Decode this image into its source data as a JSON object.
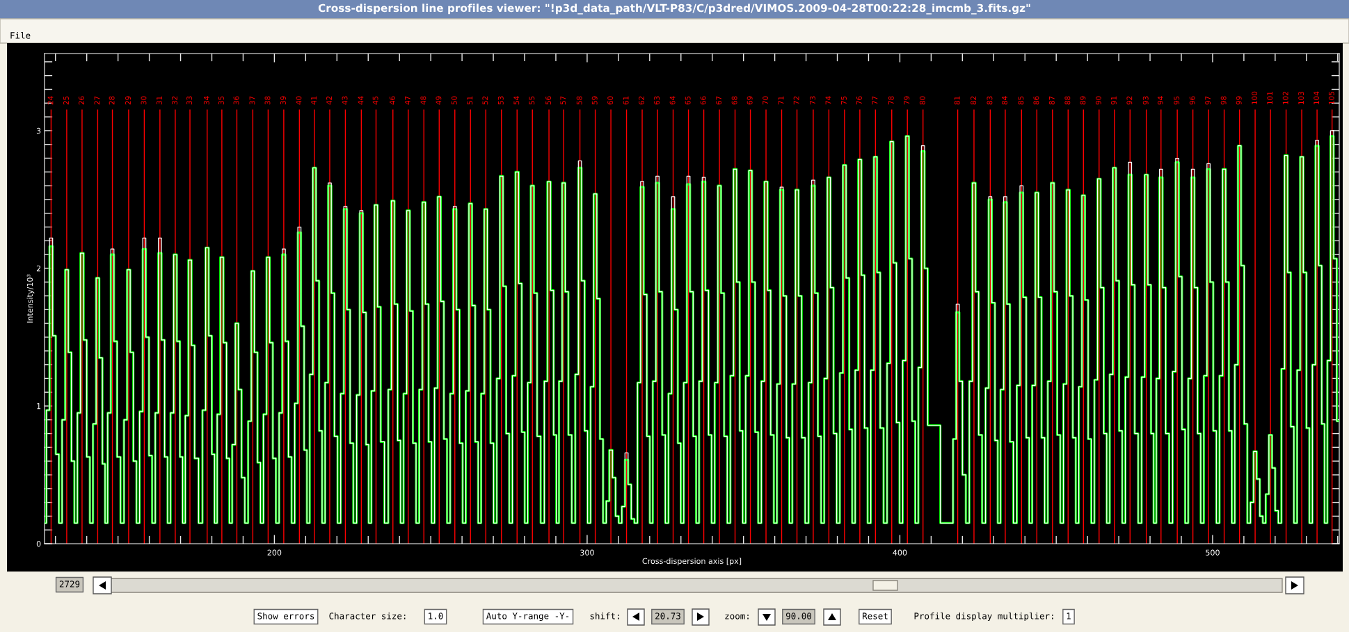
{
  "chart_data": {
    "type": "step",
    "title": "Cross-dispersion line profiles viewer: \"!p3d_data_path/VLT-P83/C/p3dred/VIMOS.2009-04-28T00:22:28_imcmb_3.fits.gz\"",
    "xlabel": "Cross-dispersion axis [px]",
    "ylabel": "Intensity/10³",
    "xlim": [
      126.5,
      540.5
    ],
    "ylim": [
      0,
      3.56
    ],
    "xticks": [
      {
        "value": 130,
        "label": null
      },
      {
        "value": 140,
        "label": null
      },
      {
        "value": 150,
        "label": null
      },
      {
        "value": 160,
        "label": null
      },
      {
        "value": 170,
        "label": null
      },
      {
        "value": 180,
        "label": null
      },
      {
        "value": 190,
        "label": null
      },
      200,
      {
        "value": 210,
        "label": null
      },
      {
        "value": 220,
        "label": null
      },
      {
        "value": 230,
        "label": null
      },
      {
        "value": 240,
        "label": null
      },
      {
        "value": 250,
        "label": null
      },
      {
        "value": 260,
        "label": null
      },
      {
        "value": 270,
        "label": null
      },
      {
        "value": 280,
        "label": null
      },
      {
        "value": 290,
        "label": null
      },
      300,
      {
        "value": 310,
        "label": null
      },
      {
        "value": 320,
        "label": null
      },
      {
        "value": 330,
        "label": null
      },
      {
        "value": 340,
        "label": null
      },
      {
        "value": 350,
        "label": null
      },
      {
        "value": 360,
        "label": null
      },
      {
        "value": 370,
        "label": null
      },
      {
        "value": 380,
        "label": null
      },
      {
        "value": 390,
        "label": null
      },
      400,
      {
        "value": 410,
        "label": null
      },
      {
        "value": 420,
        "label": null
      },
      {
        "value": 430,
        "label": null
      },
      {
        "value": 440,
        "label": null
      },
      {
        "value": 450,
        "label": null
      },
      {
        "value": 460,
        "label": null
      },
      {
        "value": 470,
        "label": null
      },
      {
        "value": 480,
        "label": null
      },
      {
        "value": 490,
        "label": null
      },
      500,
      {
        "value": 510,
        "label": null
      },
      {
        "value": 520,
        "label": null
      },
      {
        "value": 530,
        "label": null
      },
      {
        "value": 540,
        "label": null
      }
    ],
    "yticks": [
      0,
      {
        "value": 0.1,
        "label": null
      },
      {
        "value": 0.2,
        "label": null
      },
      {
        "value": 0.3,
        "label": null
      },
      {
        "value": 0.4,
        "label": null
      },
      {
        "value": 0.5,
        "label": null
      },
      {
        "value": 0.6,
        "label": null
      },
      {
        "value": 0.7,
        "label": null
      },
      {
        "value": 0.8,
        "label": null
      },
      {
        "value": 0.9,
        "label": null
      },
      1,
      {
        "value": 1.1,
        "label": null
      },
      {
        "value": 1.2,
        "label": null
      },
      {
        "value": 1.3,
        "label": null
      },
      {
        "value": 1.4,
        "label": null
      },
      {
        "value": 1.5,
        "label": null
      },
      {
        "value": 1.6,
        "label": null
      },
      {
        "value": 1.7,
        "label": null
      },
      {
        "value": 1.8,
        "label": null
      },
      {
        "value": 1.9,
        "label": null
      },
      2,
      {
        "value": 2.1,
        "label": null
      },
      {
        "value": 2.2,
        "label": null
      },
      {
        "value": 2.3,
        "label": null
      },
      {
        "value": 2.4,
        "label": null
      },
      {
        "value": 2.5,
        "label": null
      },
      {
        "value": 2.6,
        "label": null
      },
      {
        "value": 2.7,
        "label": null
      },
      {
        "value": 2.8,
        "label": null
      },
      {
        "value": 2.9,
        "label": null
      },
      3,
      {
        "value": 3.1,
        "label": null
      },
      {
        "value": 3.2,
        "label": null
      },
      {
        "value": 3.3,
        "label": null
      },
      {
        "value": 3.4,
        "label": null
      },
      {
        "value": 3.5,
        "label": null
      }
    ],
    "x": [
      126.6,
      127.6,
      128.6,
      129.6,
      130.6,
      131.6,
      132.6,
      133.6,
      134.6,
      135.6,
      136.5,
      137.5,
      138.5,
      139.5,
      140.5,
      141.5,
      142.5,
      143.5,
      144.5,
      145.5,
      146.2,
      147.2,
      148.2,
      149.2,
      150.2,
      151.4,
      152.4,
      153.4,
      154.4,
      155.4,
      156.4,
      157.4,
      158.4,
      159.4,
      160.4,
      161.4,
      162.4,
      163.4,
      164.4,
      165.4,
      166.3,
      167.3,
      168.3,
      169.3,
      170.3,
      171.0,
      172.0,
      173.0,
      174.0,
      175.0,
      176.5,
      177.5,
      178.5,
      179.5,
      180.5,
      181.2,
      182.2,
      183.2,
      184.2,
      185.2,
      186.0,
      187.0,
      188.0,
      189.0,
      190.0,
      191.1,
      192.1,
      193.1,
      194.1,
      195.1,
      196.0,
      197.0,
      198.0,
      199.0,
      200.0,
      201.0,
      202.0,
      203.0,
      204.0,
      205.0,
      206.0,
      207.0,
      208.0,
      209.0,
      210.0,
      210.8,
      211.8,
      212.8,
      213.8,
      214.8,
      215.7,
      216.7,
      217.7,
      218.7,
      219.7,
      220.7,
      221.7,
      222.7,
      223.7,
      224.7,
      225.8,
      226.8,
      227.8,
      228.8,
      229.8,
      230.5,
      231.5,
      232.5,
      233.5,
      234.5,
      235.9,
      236.9,
      237.9,
      238.9,
      239.9,
      240.8,
      241.8,
      242.8,
      243.8,
      244.8,
      245.8,
      246.8,
      247.8,
      248.8,
      249.8,
      250.7,
      251.7,
      252.7,
      253.7,
      254.7,
      255.7,
      256.7,
      257.7,
      258.7,
      259.7,
      260.7,
      261.7,
      262.7,
      263.7,
      264.7,
      265.6,
      266.6,
      267.6,
      268.6,
      269.6,
      270.6,
      271.6,
      272.6,
      273.6,
      274.6,
      275.6,
      276.6,
      277.6,
      278.6,
      279.6,
      280.5,
      281.5,
      282.5,
      283.5,
      284.5,
      285.8,
      286.8,
      287.8,
      288.8,
      289.8,
      290.5,
      291.5,
      292.5,
      293.5,
      294.5,
      295.7,
      296.7,
      297.7,
      298.7,
      299.7,
      300.6,
      301.6,
      302.6,
      303.6,
      304.6,
      305.6,
      306.6,
      307.6,
      308.6,
      309.6,
      310.6,
      311.6,
      312.6,
      313.6,
      314.6,
      315.6,
      316.6,
      317.6,
      318.6,
      319.6,
      320.5,
      321.5,
      322.5,
      323.5,
      324.5,
      325.5,
      326.5,
      327.5,
      328.5,
      329.5,
      330.4,
      331.4,
      332.4,
      333.4,
      334.4,
      335.3,
      336.3,
      337.3,
      338.3,
      339.3,
      340.3,
      341.3,
      342.3,
      343.3,
      344.3,
      345.3,
      346.3,
      347.3,
      348.3,
      349.3,
      350.2,
      351.2,
      352.2,
      353.2,
      354.2,
      355.2,
      356.2,
      357.2,
      358.2,
      359.2,
      360.2,
      361.2,
      362.2,
      363.2,
      364.2,
      365.1,
      366.1,
      367.1,
      368.1,
      369.1,
      370.3,
      371.3,
      372.3,
      373.3,
      374.3,
      375.3,
      376.3,
      377.3,
      378.3,
      379.3,
      380.3,
      381.3,
      382.3,
      383.3,
      384.3,
      385.2,
      386.2,
      387.2,
      388.2,
      389.2,
      390.2,
      391.2,
      392.2,
      393.2,
      394.2,
      395.4,
      396.4,
      397.4,
      398.4,
      399.4,
      400.4,
      401.4,
      402.4,
      403.4,
      404.4,
      405.4,
      406.4,
      407.4,
      408.4,
      409.4,
      416.5,
      417.5,
      418.5,
      419.5,
      420.5,
      421.7,
      422.7,
      423.7,
      424.7,
      425.7,
      426.9,
      427.9,
      428.9,
      429.9,
      430.9,
      431.7,
      432.7,
      433.7,
      434.7,
      435.7,
      436.9,
      437.9,
      438.9,
      439.9,
      440.9,
      441.8,
      442.8,
      443.8,
      444.8,
      445.8,
      446.8,
      447.8,
      448.8,
      449.8,
      450.8,
      451.8,
      452.8,
      453.8,
      454.8,
      455.8,
      456.7,
      457.7,
      458.7,
      459.7,
      460.7,
      461.7,
      462.7,
      463.7,
      464.7,
      465.7,
      466.6,
      467.6,
      468.6,
      469.6,
      470.6,
      471.6,
      472.6,
      473.6,
      474.6,
      475.6,
      476.8,
      477.8,
      478.8,
      479.8,
      480.8,
      481.5,
      482.5,
      483.5,
      484.5,
      485.5,
      486.7,
      487.7,
      488.7,
      489.7,
      490.7,
      491.7,
      492.7,
      493.7,
      494.7,
      495.7,
      496.7,
      497.7,
      498.7,
      499.7,
      500.7,
      501.7,
      502.7,
      503.7,
      504.7,
      505.7,
      506.6,
      507.6,
      508.6,
      509.6,
      510.6,
      511.6,
      512.6,
      513.6,
      514.6,
      515.6,
      516.5,
      517.5,
      518.5,
      519.5,
      520.5,
      521.5,
      522.5,
      523.5,
      524.5,
      525.5,
      526.5,
      527.5,
      528.5,
      529.5,
      530.5,
      531.4,
      532.4,
      533.4,
      534.4,
      535.4,
      536.2,
      537.2,
      538.2,
      539.2,
      540.2
    ],
    "series": [
      {
        "color": "#ffffff",
        "values": [
          0.15,
          0.97,
          2.22,
          1.51,
          0.65,
          0.15,
          0.9,
          1.99,
          1.39,
          0.6,
          0.15,
          0.95,
          2.11,
          1.48,
          0.63,
          0.15,
          0.87,
          1.93,
          1.35,
          0.58,
          0.15,
          0.95,
          2.14,
          1.47,
          0.63,
          0.15,
          0.9,
          1.99,
          1.39,
          0.6,
          0.15,
          0.96,
          2.22,
          1.5,
          0.64,
          0.15,
          0.95,
          2.22,
          1.48,
          0.63,
          0.15,
          0.95,
          2.1,
          1.47,
          0.63,
          0.15,
          0.93,
          2.06,
          1.44,
          0.62,
          0.15,
          0.97,
          2.15,
          1.51,
          0.65,
          0.15,
          0.94,
          2.08,
          1.46,
          0.62,
          0.15,
          0.72,
          1.6,
          1.12,
          0.48,
          0.15,
          0.89,
          1.98,
          1.39,
          0.59,
          0.15,
          0.94,
          2.08,
          1.46,
          0.62,
          0.15,
          0.95,
          2.14,
          1.47,
          0.63,
          0.15,
          1.02,
          2.3,
          1.58,
          0.68,
          0.15,
          1.23,
          2.73,
          1.91,
          0.82,
          0.15,
          1.17,
          2.62,
          1.82,
          0.78,
          0.15,
          1.09,
          2.45,
          1.7,
          0.73,
          0.15,
          1.08,
          2.42,
          1.68,
          0.72,
          0.15,
          1.11,
          2.46,
          1.72,
          0.74,
          0.15,
          1.12,
          2.49,
          1.74,
          0.75,
          0.15,
          1.09,
          2.42,
          1.69,
          0.73,
          0.15,
          1.12,
          2.48,
          1.74,
          0.74,
          0.15,
          1.13,
          2.52,
          1.76,
          0.76,
          0.15,
          1.09,
          2.45,
          1.7,
          0.73,
          0.15,
          1.11,
          2.47,
          1.73,
          0.74,
          0.15,
          1.09,
          2.43,
          1.7,
          0.73,
          0.15,
          1.2,
          2.67,
          1.87,
          0.8,
          0.15,
          1.22,
          2.7,
          1.89,
          0.81,
          0.15,
          1.17,
          2.6,
          1.82,
          0.78,
          0.15,
          1.18,
          2.63,
          1.84,
          0.79,
          0.15,
          1.18,
          2.62,
          1.83,
          0.79,
          0.15,
          1.23,
          2.78,
          1.91,
          0.82,
          0.15,
          1.14,
          2.54,
          1.78,
          0.76,
          0.15,
          0.31,
          0.68,
          0.48,
          0.2,
          0.15,
          0.27,
          0.66,
          0.43,
          0.18,
          0.15,
          1.17,
          2.63,
          1.81,
          0.78,
          0.15,
          1.18,
          2.67,
          1.83,
          0.79,
          0.15,
          1.09,
          2.52,
          1.7,
          0.73,
          0.15,
          1.17,
          2.67,
          1.83,
          0.78,
          0.15,
          1.18,
          2.66,
          1.84,
          0.79,
          0.15,
          1.17,
          2.6,
          1.82,
          0.78,
          0.15,
          1.22,
          2.72,
          1.9,
          0.82,
          0.15,
          1.22,
          2.71,
          1.9,
          0.81,
          0.15,
          1.18,
          2.63,
          1.84,
          0.79,
          0.15,
          1.16,
          2.59,
          1.8,
          0.77,
          0.15,
          1.16,
          2.57,
          1.8,
          0.77,
          0.15,
          1.17,
          2.64,
          1.82,
          0.78,
          0.15,
          1.2,
          2.66,
          1.86,
          0.8,
          0.15,
          1.24,
          2.75,
          1.93,
          0.83,
          0.15,
          1.26,
          2.79,
          1.95,
          0.84,
          0.15,
          1.26,
          2.81,
          1.97,
          0.84,
          0.15,
          1.31,
          2.92,
          2.04,
          0.88,
          0.15,
          1.33,
          2.96,
          2.07,
          0.89,
          0.15,
          1.28,
          2.89,
          2.0,
          0.86,
          0.15,
          0.76,
          1.74,
          1.18,
          0.5,
          0.15,
          1.18,
          2.62,
          1.83,
          0.79,
          0.15,
          1.13,
          2.52,
          1.75,
          0.75,
          0.15,
          1.12,
          2.52,
          1.74,
          0.74,
          0.15,
          1.15,
          2.6,
          1.79,
          0.77,
          0.15,
          1.15,
          2.55,
          1.79,
          0.77,
          0.15,
          1.18,
          2.62,
          1.83,
          0.79,
          0.15,
          1.16,
          2.57,
          1.8,
          0.77,
          0.15,
          1.14,
          2.53,
          1.77,
          0.76,
          0.15,
          1.19,
          2.65,
          1.86,
          0.8,
          0.15,
          1.23,
          2.73,
          1.91,
          0.82,
          0.15,
          1.21,
          2.77,
          1.88,
          0.8,
          0.15,
          1.21,
          2.68,
          1.88,
          0.8,
          0.15,
          1.2,
          2.72,
          1.86,
          0.8,
          0.15,
          1.25,
          2.8,
          1.94,
          0.83,
          0.15,
          1.2,
          2.72,
          1.86,
          0.8,
          0.15,
          1.22,
          2.76,
          1.9,
          0.82,
          0.15,
          1.22,
          2.72,
          1.9,
          0.82,
          0.15,
          1.3,
          2.89,
          2.02,
          0.87,
          0.15,
          0.3,
          0.67,
          0.47,
          0.2,
          0.15,
          0.36,
          0.79,
          0.55,
          0.24,
          0.15,
          1.27,
          2.82,
          1.97,
          0.85,
          0.15,
          1.26,
          2.81,
          1.97,
          0.84,
          0.15,
          1.3,
          2.93,
          2.02,
          0.87,
          0.15,
          1.33,
          3.0,
          2.07,
          0.89
        ]
      },
      {
        "color": "#00ff00",
        "values": [
          0.15,
          0.97,
          2.16,
          1.51,
          0.65,
          0.15,
          0.9,
          1.99,
          1.39,
          0.6,
          0.15,
          0.95,
          2.11,
          1.48,
          0.63,
          0.15,
          0.87,
          1.93,
          1.35,
          0.58,
          0.15,
          0.95,
          2.1,
          1.47,
          0.63,
          0.15,
          0.9,
          1.99,
          1.39,
          0.6,
          0.15,
          0.96,
          2.14,
          1.5,
          0.64,
          0.15,
          0.95,
          2.11,
          1.48,
          0.63,
          0.15,
          0.95,
          2.1,
          1.47,
          0.63,
          0.15,
          0.93,
          2.06,
          1.44,
          0.62,
          0.15,
          0.97,
          2.15,
          1.51,
          0.65,
          0.15,
          0.94,
          2.08,
          1.46,
          0.62,
          0.15,
          0.72,
          1.6,
          1.12,
          0.48,
          0.15,
          0.89,
          1.98,
          1.39,
          0.59,
          0.15,
          0.94,
          2.08,
          1.46,
          0.62,
          0.15,
          0.95,
          2.1,
          1.47,
          0.63,
          0.15,
          1.02,
          2.26,
          1.58,
          0.68,
          0.15,
          1.23,
          2.73,
          1.91,
          0.82,
          0.15,
          1.17,
          2.6,
          1.82,
          0.78,
          0.15,
          1.09,
          2.43,
          1.7,
          0.73,
          0.15,
          1.08,
          2.4,
          1.68,
          0.72,
          0.15,
          1.11,
          2.46,
          1.72,
          0.74,
          0.15,
          1.12,
          2.49,
          1.74,
          0.75,
          0.15,
          1.09,
          2.42,
          1.69,
          0.73,
          0.15,
          1.12,
          2.48,
          1.74,
          0.74,
          0.15,
          1.13,
          2.52,
          1.76,
          0.76,
          0.15,
          1.09,
          2.43,
          1.7,
          0.73,
          0.15,
          1.11,
          2.47,
          1.73,
          0.74,
          0.15,
          1.09,
          2.43,
          1.7,
          0.73,
          0.15,
          1.2,
          2.67,
          1.87,
          0.8,
          0.15,
          1.22,
          2.7,
          1.89,
          0.81,
          0.15,
          1.17,
          2.6,
          1.82,
          0.78,
          0.15,
          1.18,
          2.63,
          1.84,
          0.79,
          0.15,
          1.18,
          2.62,
          1.83,
          0.79,
          0.15,
          1.23,
          2.73,
          1.91,
          0.82,
          0.15,
          1.14,
          2.54,
          1.78,
          0.76,
          0.15,
          0.31,
          0.68,
          0.48,
          0.2,
          0.15,
          0.27,
          0.61,
          0.43,
          0.18,
          0.15,
          1.17,
          2.59,
          1.81,
          0.78,
          0.15,
          1.18,
          2.62,
          1.83,
          0.79,
          0.15,
          1.09,
          2.43,
          1.7,
          0.73,
          0.15,
          1.17,
          2.61,
          1.83,
          0.78,
          0.15,
          1.18,
          2.63,
          1.84,
          0.79,
          0.15,
          1.17,
          2.6,
          1.82,
          0.78,
          0.15,
          1.22,
          2.72,
          1.9,
          0.82,
          0.15,
          1.22,
          2.71,
          1.9,
          0.81,
          0.15,
          1.18,
          2.63,
          1.84,
          0.79,
          0.15,
          1.16,
          2.57,
          1.8,
          0.77,
          0.15,
          1.16,
          2.57,
          1.8,
          0.77,
          0.15,
          1.17,
          2.6,
          1.82,
          0.78,
          0.15,
          1.2,
          2.66,
          1.86,
          0.8,
          0.15,
          1.24,
          2.75,
          1.93,
          0.83,
          0.15,
          1.26,
          2.79,
          1.95,
          0.84,
          0.15,
          1.26,
          2.81,
          1.97,
          0.84,
          0.15,
          1.31,
          2.92,
          2.04,
          0.88,
          0.15,
          1.33,
          2.96,
          2.07,
          0.89,
          0.15,
          1.28,
          2.85,
          2.0,
          0.86,
          0.15,
          0.76,
          1.68,
          1.18,
          0.5,
          0.15,
          1.18,
          2.62,
          1.83,
          0.79,
          0.15,
          1.13,
          2.5,
          1.75,
          0.75,
          0.15,
          1.12,
          2.48,
          1.74,
          0.74,
          0.15,
          1.15,
          2.55,
          1.79,
          0.77,
          0.15,
          1.15,
          2.55,
          1.79,
          0.77,
          0.15,
          1.18,
          2.62,
          1.83,
          0.79,
          0.15,
          1.16,
          2.57,
          1.8,
          0.77,
          0.15,
          1.14,
          2.53,
          1.77,
          0.76,
          0.15,
          1.19,
          2.65,
          1.86,
          0.8,
          0.15,
          1.23,
          2.73,
          1.91,
          0.82,
          0.15,
          1.21,
          2.68,
          1.88,
          0.8,
          0.15,
          1.21,
          2.68,
          1.88,
          0.8,
          0.15,
          1.2,
          2.66,
          1.86,
          0.8,
          0.15,
          1.25,
          2.77,
          1.94,
          0.83,
          0.15,
          1.2,
          2.66,
          1.86,
          0.8,
          0.15,
          1.22,
          2.72,
          1.9,
          0.82,
          0.15,
          1.22,
          2.72,
          1.9,
          0.82,
          0.15,
          1.3,
          2.89,
          2.02,
          0.87,
          0.15,
          0.3,
          0.67,
          0.47,
          0.2,
          0.15,
          0.36,
          0.79,
          0.55,
          0.24,
          0.15,
          1.27,
          2.82,
          1.97,
          0.85,
          0.15,
          1.26,
          2.81,
          1.97,
          0.84,
          0.15,
          1.3,
          2.89,
          2.02,
          0.87,
          0.15,
          1.33,
          2.96,
          2.07,
          0.89
        ]
      }
    ],
    "ref_lines": [
      {
        "axis": "x",
        "value": 128.6,
        "color": "#ff0000"
      },
      {
        "axis": "x",
        "value": 133.6,
        "color": "#ff0000"
      },
      {
        "axis": "x",
        "value": 138.5,
        "color": "#ff0000"
      },
      {
        "axis": "x",
        "value": 143.5,
        "color": "#ff0000"
      },
      {
        "axis": "x",
        "value": 148.2,
        "color": "#ff0000"
      },
      {
        "axis": "x",
        "value": 153.4,
        "color": "#ff0000"
      },
      {
        "axis": "x",
        "value": 158.4,
        "color": "#ff0000"
      },
      {
        "axis": "x",
        "value": 163.4,
        "color": "#ff0000"
      },
      {
        "axis": "x",
        "value": 168.3,
        "color": "#ff0000"
      },
      {
        "axis": "x",
        "value": 173.0,
        "color": "#ff0000"
      },
      {
        "axis": "x",
        "value": 178.5,
        "color": "#ff0000"
      },
      {
        "axis": "x",
        "value": 183.2,
        "color": "#ff0000"
      },
      {
        "axis": "x",
        "value": 188.0,
        "color": "#ff0000"
      },
      {
        "axis": "x",
        "value": 193.1,
        "color": "#ff0000"
      },
      {
        "axis": "x",
        "value": 198.0,
        "color": "#ff0000"
      },
      {
        "axis": "x",
        "value": 203.0,
        "color": "#ff0000"
      },
      {
        "axis": "x",
        "value": 208.0,
        "color": "#ff0000"
      },
      {
        "axis": "x",
        "value": 212.8,
        "color": "#ff0000"
      },
      {
        "axis": "x",
        "value": 217.7,
        "color": "#ff0000"
      },
      {
        "axis": "x",
        "value": 222.7,
        "color": "#ff0000"
      },
      {
        "axis": "x",
        "value": 227.8,
        "color": "#ff0000"
      },
      {
        "axis": "x",
        "value": 232.5,
        "color": "#ff0000"
      },
      {
        "axis": "x",
        "value": 237.9,
        "color": "#ff0000"
      },
      {
        "axis": "x",
        "value": 242.8,
        "color": "#ff0000"
      },
      {
        "axis": "x",
        "value": 247.8,
        "color": "#ff0000"
      },
      {
        "axis": "x",
        "value": 252.7,
        "color": "#ff0000"
      },
      {
        "axis": "x",
        "value": 257.7,
        "color": "#ff0000"
      },
      {
        "axis": "x",
        "value": 262.7,
        "color": "#ff0000"
      },
      {
        "axis": "x",
        "value": 267.6,
        "color": "#ff0000"
      },
      {
        "axis": "x",
        "value": 272.6,
        "color": "#ff0000"
      },
      {
        "axis": "x",
        "value": 277.6,
        "color": "#ff0000"
      },
      {
        "axis": "x",
        "value": 282.5,
        "color": "#ff0000"
      },
      {
        "axis": "x",
        "value": 287.8,
        "color": "#ff0000"
      },
      {
        "axis": "x",
        "value": 292.5,
        "color": "#ff0000"
      },
      {
        "axis": "x",
        "value": 297.7,
        "color": "#ff0000"
      },
      {
        "axis": "x",
        "value": 302.6,
        "color": "#ff0000"
      },
      {
        "axis": "x",
        "value": 307.6,
        "color": "#ff0000"
      },
      {
        "axis": "x",
        "value": 312.6,
        "color": "#ff0000"
      },
      {
        "axis": "x",
        "value": 317.6,
        "color": "#ff0000"
      },
      {
        "axis": "x",
        "value": 322.5,
        "color": "#ff0000"
      },
      {
        "axis": "x",
        "value": 327.5,
        "color": "#ff0000"
      },
      {
        "axis": "x",
        "value": 332.4,
        "color": "#ff0000"
      },
      {
        "axis": "x",
        "value": 337.3,
        "color": "#ff0000"
      },
      {
        "axis": "x",
        "value": 342.3,
        "color": "#ff0000"
      },
      {
        "axis": "x",
        "value": 347.3,
        "color": "#ff0000"
      },
      {
        "axis": "x",
        "value": 352.2,
        "color": "#ff0000"
      },
      {
        "axis": "x",
        "value": 357.2,
        "color": "#ff0000"
      },
      {
        "axis": "x",
        "value": 362.2,
        "color": "#ff0000"
      },
      {
        "axis": "x",
        "value": 367.1,
        "color": "#ff0000"
      },
      {
        "axis": "x",
        "value": 372.3,
        "color": "#ff0000"
      },
      {
        "axis": "x",
        "value": 377.3,
        "color": "#ff0000"
      },
      {
        "axis": "x",
        "value": 382.3,
        "color": "#ff0000"
      },
      {
        "axis": "x",
        "value": 387.2,
        "color": "#ff0000"
      },
      {
        "axis": "x",
        "value": 392.2,
        "color": "#ff0000"
      },
      {
        "axis": "x",
        "value": 397.4,
        "color": "#ff0000"
      },
      {
        "axis": "x",
        "value": 402.4,
        "color": "#ff0000"
      },
      {
        "axis": "x",
        "value": 407.4,
        "color": "#ff0000"
      },
      {
        "axis": "x",
        "value": 418.5,
        "color": "#ff0000"
      },
      {
        "axis": "x",
        "value": 423.7,
        "color": "#ff0000"
      },
      {
        "axis": "x",
        "value": 428.9,
        "color": "#ff0000"
      },
      {
        "axis": "x",
        "value": 433.7,
        "color": "#ff0000"
      },
      {
        "axis": "x",
        "value": 438.9,
        "color": "#ff0000"
      },
      {
        "axis": "x",
        "value": 443.8,
        "color": "#ff0000"
      },
      {
        "axis": "x",
        "value": 448.8,
        "color": "#ff0000"
      },
      {
        "axis": "x",
        "value": 453.8,
        "color": "#ff0000"
      },
      {
        "axis": "x",
        "value": 458.7,
        "color": "#ff0000"
      },
      {
        "axis": "x",
        "value": 463.7,
        "color": "#ff0000"
      },
      {
        "axis": "x",
        "value": 468.6,
        "color": "#ff0000"
      },
      {
        "axis": "x",
        "value": 473.6,
        "color": "#ff0000"
      },
      {
        "axis": "x",
        "value": 478.8,
        "color": "#ff0000"
      },
      {
        "axis": "x",
        "value": 483.5,
        "color": "#ff0000"
      },
      {
        "axis": "x",
        "value": 488.7,
        "color": "#ff0000"
      },
      {
        "axis": "x",
        "value": 493.7,
        "color": "#ff0000"
      },
      {
        "axis": "x",
        "value": 498.7,
        "color": "#ff0000"
      },
      {
        "axis": "x",
        "value": 503.7,
        "color": "#ff0000"
      },
      {
        "axis": "x",
        "value": 508.6,
        "color": "#ff0000"
      },
      {
        "axis": "x",
        "value": 513.6,
        "color": "#ff0000"
      },
      {
        "axis": "x",
        "value": 518.5,
        "color": "#ff0000"
      },
      {
        "axis": "x",
        "value": 523.5,
        "color": "#ff0000"
      },
      {
        "axis": "x",
        "value": 528.5,
        "color": "#ff0000"
      },
      {
        "axis": "x",
        "value": 533.4,
        "color": "#ff0000"
      },
      {
        "axis": "x",
        "value": 538.2,
        "color": "#ff0000"
      }
    ],
    "annotations": [
      "24",
      "25",
      "26",
      "27",
      "28",
      "29",
      "30",
      "31",
      "32",
      "33",
      "34",
      "35",
      "36",
      "37",
      "38",
      "39",
      "40",
      "41",
      "42",
      "43",
      "44",
      "45",
      "46",
      "47",
      "48",
      "49",
      "50",
      "51",
      "52",
      "53",
      "54",
      "55",
      "56",
      "57",
      "58",
      "59",
      "60",
      "61",
      "62",
      "63",
      "64",
      "65",
      "66",
      "67",
      "68",
      "69",
      "70",
      "71",
      "72",
      "73",
      "74",
      "75",
      "76",
      "77",
      "78",
      "79",
      "80",
      "81",
      "82",
      "83",
      "84",
      "85",
      "86",
      "87",
      "88",
      "89",
      "90",
      "91",
      "92",
      "93",
      "94",
      "95",
      "96",
      "97",
      "98",
      "99",
      "100",
      "101",
      "102",
      "103",
      "104",
      "105",
      "File",
      "2729",
      "Show errors",
      "Character size:",
      "1.0",
      "Auto Y-range -Y-",
      "shift:",
      "20.73",
      "zoom:",
      "90.00",
      "Reset",
      "Profile display multiplier:",
      "1"
    ]
  }
}
